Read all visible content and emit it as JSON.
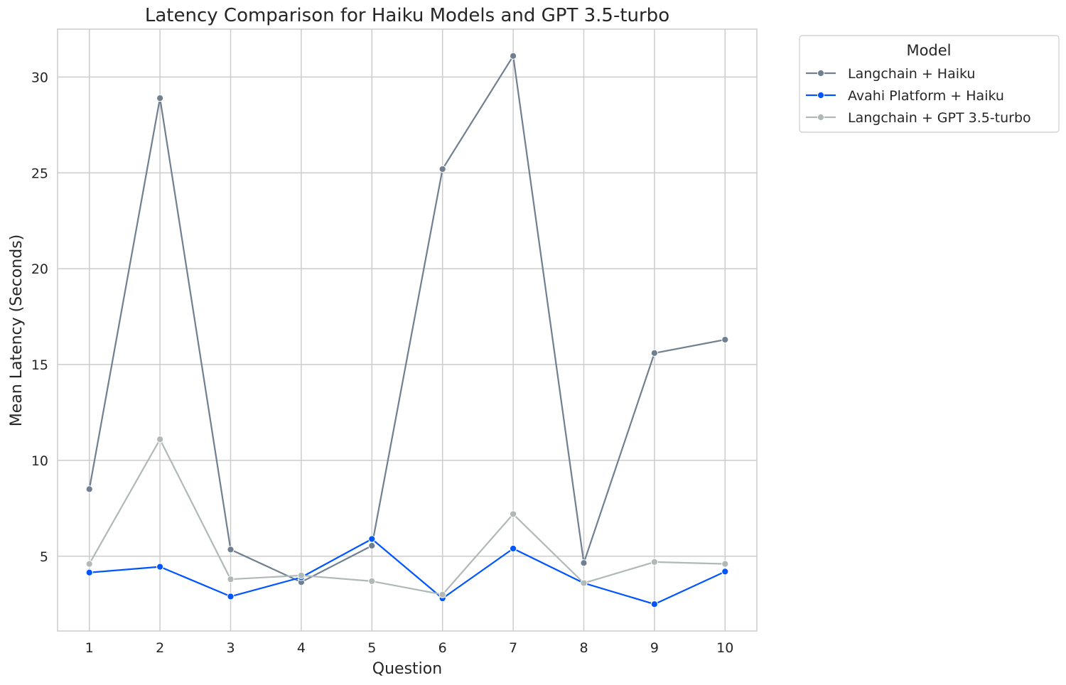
{
  "chart_data": {
    "type": "line",
    "title": "Latency Comparison for Haiku Models and GPT 3.5-turbo",
    "xlabel": "Question",
    "ylabel": "Mean Latency (Seconds)",
    "x": [
      1,
      2,
      3,
      4,
      5,
      6,
      7,
      8,
      9,
      10
    ],
    "x_tick_labels": [
      "1",
      "2",
      "3",
      "4",
      "5",
      "6",
      "7",
      "8",
      "9",
      "10"
    ],
    "y_ticks": [
      5,
      10,
      15,
      20,
      25,
      30
    ],
    "y_tick_labels": [
      "5",
      "10",
      "15",
      "20",
      "25",
      "30"
    ],
    "xlim": [
      0.55,
      10.45
    ],
    "ylim": [
      1.1,
      32.5
    ],
    "grid": true,
    "legend": {
      "title": "Model",
      "placement": "outside top-right"
    },
    "series": [
      {
        "name": "Langchain + Haiku",
        "color": "#708090",
        "values": [
          8.5,
          28.9,
          5.35,
          3.65,
          5.55,
          25.2,
          31.1,
          4.65,
          15.6,
          16.3
        ]
      },
      {
        "name": "Avahi Platform + Haiku",
        "color": "#0055ff",
        "values": [
          4.15,
          4.45,
          2.9,
          3.9,
          5.9,
          2.8,
          5.4,
          3.6,
          2.5,
          4.2
        ]
      },
      {
        "name": "Langchain + GPT 3.5-turbo",
        "color": "#b0b8b8",
        "values": [
          4.6,
          11.1,
          3.8,
          4.0,
          3.7,
          3.0,
          7.2,
          3.6,
          4.7,
          4.6
        ]
      }
    ]
  }
}
